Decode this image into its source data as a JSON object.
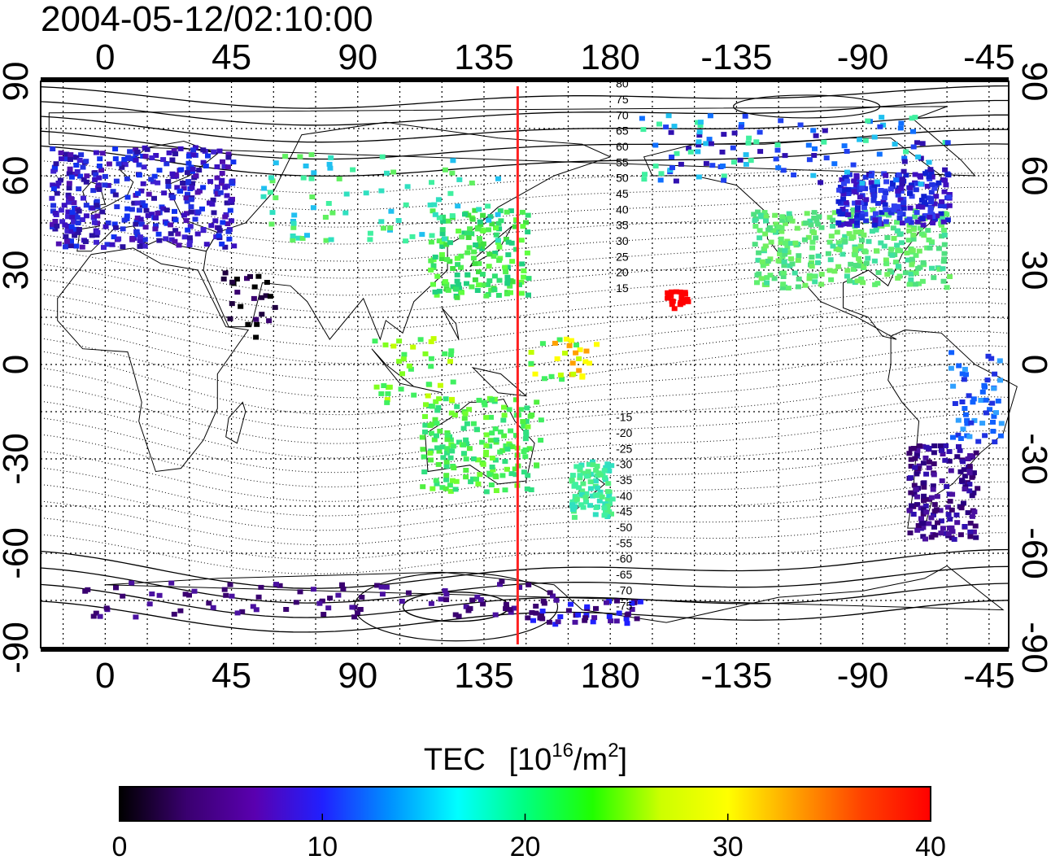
{
  "header": {
    "timestamp": "2004-05-12/02:10:00"
  },
  "map": {
    "x_ticks_top": [
      "0",
      "45",
      "90",
      "135",
      "180",
      "-135",
      "-90",
      "-45"
    ],
    "x_ticks_bottom": [
      "0",
      "45",
      "90",
      "135",
      "180",
      "-135",
      "-90",
      "-45"
    ],
    "y_ticks_left": [
      "90",
      "60",
      "30",
      "0",
      "-30",
      "-60",
      "-90"
    ],
    "y_ticks_right": [
      "90",
      "60",
      "30",
      "0",
      "-30",
      "-60",
      "-90"
    ],
    "contour_labels": [
      "80",
      "75",
      "70",
      "65",
      "60",
      "55",
      "50",
      "45",
      "40",
      "35",
      "30",
      "25",
      "20",
      "15",
      "-15",
      "-20",
      "-25",
      "-30",
      "-35",
      "-40",
      "-45",
      "-50",
      "-55",
      "-60",
      "-65",
      "-70",
      "-75"
    ],
    "meridian_line_longitude": 147,
    "meridian_line_color": "#ff2020"
  },
  "colorbar": {
    "title": "TEC",
    "unit_prefix": "[10",
    "unit_exponent": "16",
    "unit_middle": "/m",
    "unit_exponent2": "2",
    "unit_suffix": "]",
    "ticks": [
      "0",
      "10",
      "20",
      "30",
      "40"
    ],
    "colors": [
      "#000000",
      "#3a0070",
      "#5a00b0",
      "#2020ff",
      "#0090ff",
      "#00ffff",
      "#00ff80",
      "#20ff00",
      "#ccff00",
      "#ffff00",
      "#ffa000",
      "#ff4000",
      "#ff0000"
    ]
  },
  "tec_clusters": [
    {
      "region": "europe",
      "color": "#3010b0",
      "lon": 10,
      "lat": 50
    },
    {
      "region": "east-asia",
      "color": "#40e040",
      "lon": 135,
      "lat": 38
    },
    {
      "region": "north-america",
      "color": "#60f070",
      "lon": -95,
      "lat": 35
    },
    {
      "region": "canada",
      "color": "#2030e0",
      "lon": -80,
      "lat": 52
    },
    {
      "region": "hawaii",
      "color": "#ff0000",
      "lon": -157,
      "lat": 21
    },
    {
      "region": "australia",
      "color": "#40f060",
      "lon": 145,
      "lat": -30
    },
    {
      "region": "new-zealand",
      "color": "#40f0a0",
      "lon": 172,
      "lat": -42
    },
    {
      "region": "south-america",
      "color": "#3a0070",
      "lon": -62,
      "lat": -35
    },
    {
      "region": "antarctica",
      "color": "#3a0070",
      "lon": 60,
      "lat": -72
    }
  ]
}
